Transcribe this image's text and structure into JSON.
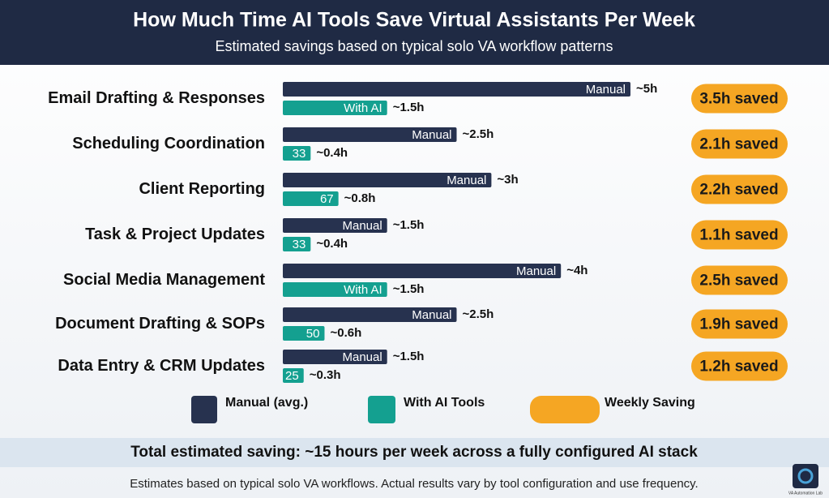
{
  "chart_data": {
    "type": "bar",
    "orientation": "horizontal",
    "title": "How Much Time AI Tools Save Virtual Assistants Per Week",
    "subtitle": "Estimated savings based on typical solo VA workflow patterns",
    "categories": [
      "Email Drafting & Responses",
      "Scheduling Coordination",
      "Client Reporting",
      "Task & Project Updates",
      "Social Media Management",
      "Document Drafting & SOPs",
      "Data Entry & CRM Updates"
    ],
    "xlim": [
      0,
      5
    ],
    "series": [
      {
        "name": "Manual (avg.)",
        "color": "#27324f",
        "values": [
          5,
          2.5,
          3,
          1.5,
          4,
          2.5,
          1.5
        ],
        "value_labels": [
          "~5h",
          "~2.5h",
          "~3h",
          "~1.5h",
          "~4h",
          "~2.5h",
          "~1.5h"
        ],
        "bar_labels": [
          "Manual",
          "Manual",
          "Manual",
          "Manual",
          "Manual",
          "Manual",
          "Manual"
        ]
      },
      {
        "name": "With AI Tools",
        "color": "#14a090",
        "values": [
          1.5,
          0.4,
          0.8,
          0.4,
          1.5,
          0.6,
          0.3
        ],
        "value_labels": [
          "~1.5h",
          "~0.4h",
          "~0.8h",
          "~0.4h",
          "~1.5h",
          "~0.6h",
          "~0.3h"
        ],
        "bar_labels": [
          "With AI",
          "33",
          "67",
          "33",
          "With AI",
          "50",
          "25"
        ]
      },
      {
        "name": "Weekly Saving",
        "color": "#f5a623",
        "values": [
          3.5,
          2.1,
          2.2,
          1.1,
          2.5,
          1.9,
          1.2
        ],
        "value_labels": [
          "3.5h saved",
          "2.1h saved",
          "2.2h saved",
          "1.1h saved",
          "2.5h saved",
          "1.9h saved",
          "1.2h saved"
        ]
      }
    ],
    "summary": "Total estimated saving: ~15 hours per week across a fully configured AI stack",
    "footnote": "Estimates based on typical solo VA workflows. Actual results vary by tool configuration and use frequency.",
    "logo_text": "VA Automation Lab"
  }
}
